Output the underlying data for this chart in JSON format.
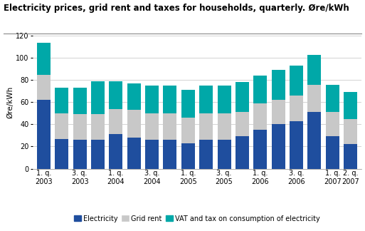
{
  "title": "Electricity prices, grid rent and taxes for households, quarterly. Øre/kWh",
  "ylabel": "Øre/kWh",
  "ylim": [
    0,
    120
  ],
  "yticks": [
    0,
    20,
    40,
    60,
    80,
    100,
    120
  ],
  "electricity": [
    62,
    27,
    26,
    26,
    31,
    28,
    26,
    26,
    23,
    26,
    26,
    29,
    35,
    40,
    43,
    51,
    29,
    22
  ],
  "grid_rent": [
    23,
    23,
    23,
    23,
    23,
    25,
    24,
    24,
    23,
    24,
    24,
    22,
    24,
    22,
    23,
    25,
    22,
    23
  ],
  "vat_tax": [
    29,
    23,
    24,
    30,
    25,
    24,
    25,
    25,
    25,
    25,
    25,
    27,
    25,
    27,
    27,
    27,
    25,
    24
  ],
  "xtick_labels": [
    "1. q.\n2003",
    "",
    "3. q.\n2003",
    "",
    "1. q.\n2004",
    "",
    "3. q.\n2004",
    "",
    "1. q.\n2005",
    "",
    "3. q.\n2005",
    "",
    "1. q.\n2006",
    "",
    "3. q.\n2006",
    "",
    "1. q.\n2007",
    "2. q.\n2007"
  ],
  "color_electricity": "#1f4e9e",
  "color_grid_rent": "#c8c8c8",
  "color_vat": "#00a8a8",
  "legend_labels": [
    "Electricity",
    "Grid rent",
    "VAT and tax on consumption of electricity"
  ],
  "background_color": "#ffffff",
  "grid_color": "#cccccc",
  "title_fontsize": 8.5,
  "ylabel_fontsize": 7.5,
  "tick_fontsize": 7,
  "legend_fontsize": 7
}
